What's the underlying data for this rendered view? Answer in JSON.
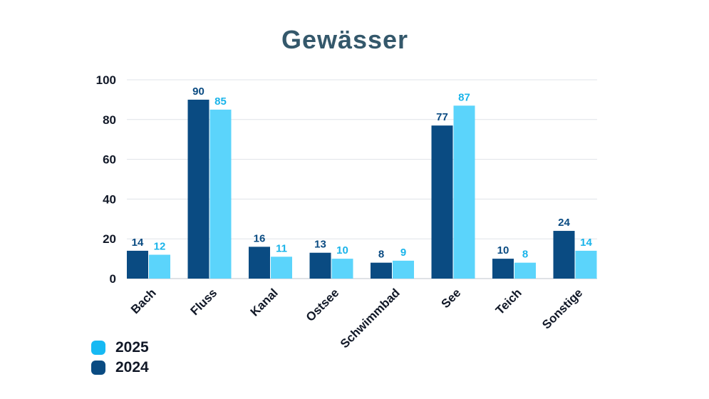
{
  "chart_data": {
    "type": "bar",
    "title": "Gewässer",
    "xlabel": "",
    "ylabel": "",
    "categories": [
      "Bach",
      "Fluss",
      "Kanal",
      "Ostsee",
      "Schwimmbad",
      "See",
      "Teich",
      "Sonstige"
    ],
    "series": [
      {
        "name": "2024",
        "color": "#0a4b82",
        "values": [
          14,
          90,
          16,
          13,
          8,
          77,
          10,
          24
        ]
      },
      {
        "name": "2025",
        "color": "#5bd4fb",
        "label_color": "#1ab4ea",
        "values": [
          12,
          85,
          11,
          10,
          9,
          87,
          8,
          14
        ]
      }
    ],
    "ylim": [
      0,
      100
    ],
    "yticks": [
      "0",
      "20",
      "40",
      "60",
      "80",
      "100"
    ],
    "grid": true,
    "legend_position": "bottom-left",
    "legend_order": [
      "2025",
      "2024"
    ]
  }
}
